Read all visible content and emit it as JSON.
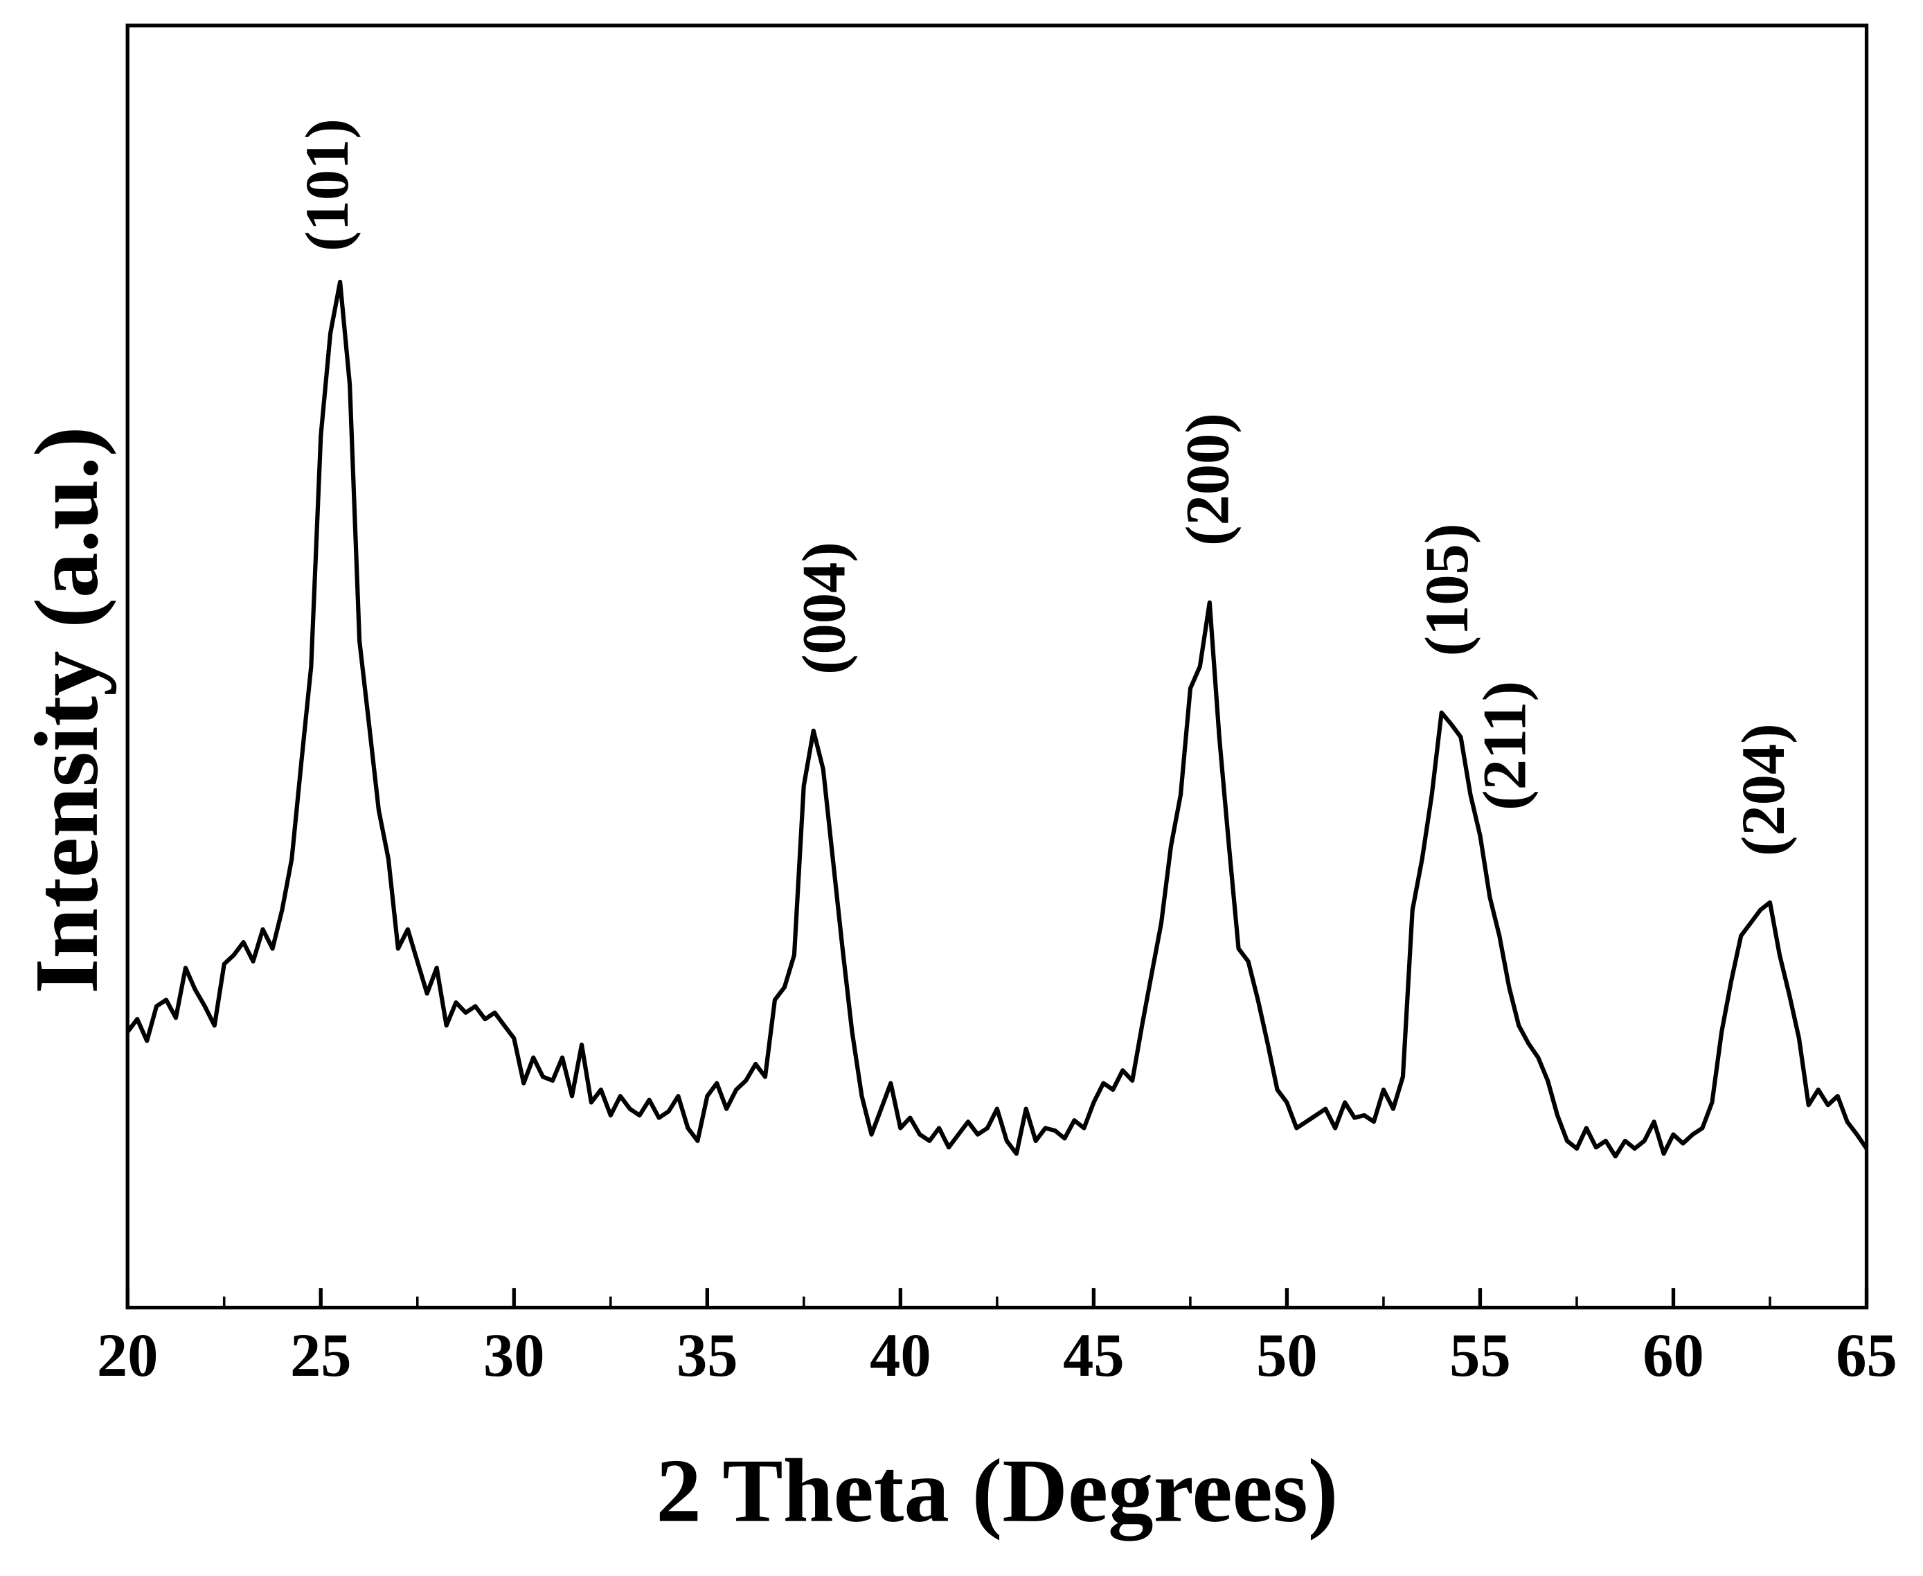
{
  "chart_data": {
    "type": "line",
    "xlabel": "2 Theta (Degrees)",
    "ylabel": "Intensity (a.u.)",
    "color": "#000000",
    "xlim": [
      20,
      65
    ],
    "xticks": [
      20,
      25,
      30,
      35,
      40,
      45,
      50,
      55,
      60,
      65
    ],
    "xminorticks": [
      22.5,
      27.5,
      32.5,
      37.5,
      42.5,
      47.5,
      52.5,
      57.5,
      62.5
    ],
    "ylim": [
      0,
      100
    ],
    "annotations": [
      "(101)",
      "(004)",
      "(200)",
      "(105)",
      "(211)",
      "(204)"
    ],
    "x": [
      20,
      20.25,
      20.5,
      20.75,
      21,
      21.25,
      21.5,
      21.75,
      22,
      22.25,
      22.5,
      22.75,
      23,
      23.25,
      23.5,
      23.75,
      24,
      24.25,
      24.5,
      24.75,
      25,
      25.25,
      25.5,
      25.75,
      26,
      26.25,
      26.5,
      26.75,
      27,
      27.25,
      27.5,
      27.75,
      28,
      28.25,
      28.5,
      28.75,
      29,
      29.25,
      29.5,
      29.75,
      30,
      30.25,
      30.5,
      30.75,
      31,
      31.25,
      31.5,
      31.75,
      32,
      32.25,
      32.5,
      32.75,
      33,
      33.25,
      33.5,
      33.75,
      34,
      34.25,
      34.5,
      34.75,
      35,
      35.25,
      35.5,
      35.75,
      36,
      36.25,
      36.5,
      36.75,
      37,
      37.25,
      37.5,
      37.75,
      38,
      38.25,
      38.5,
      38.75,
      39,
      39.25,
      39.5,
      39.75,
      40,
      40.25,
      40.5,
      40.75,
      41,
      41.25,
      41.5,
      41.75,
      42,
      42.25,
      42.5,
      42.75,
      43,
      43.25,
      43.5,
      43.75,
      44,
      44.25,
      44.5,
      44.75,
      45,
      45.25,
      45.5,
      45.75,
      46,
      46.25,
      46.5,
      46.75,
      47,
      47.25,
      47.5,
      47.75,
      48,
      48.25,
      48.5,
      48.75,
      49,
      49.25,
      49.5,
      49.75,
      50,
      50.25,
      50.5,
      50.75,
      51,
      51.25,
      51.5,
      51.75,
      52,
      52.25,
      52.5,
      52.75,
      53,
      53.25,
      53.5,
      53.75,
      54,
      54.25,
      54.5,
      54.75,
      55,
      55.25,
      55.5,
      55.75,
      56,
      56.25,
      56.5,
      56.75,
      57,
      57.25,
      57.5,
      57.75,
      58,
      58.25,
      58.5,
      58.75,
      59,
      59.25,
      59.5,
      59.75,
      60,
      60.25,
      60.5,
      60.75,
      61,
      61.25,
      61.5,
      61.75,
      62,
      62.25,
      62.5,
      62.75,
      63,
      63.25,
      63.5,
      63.75,
      64,
      64.25,
      64.5,
      64.75,
      65
    ],
    "values": [
      21.5,
      22.5,
      20.8,
      23.5,
      24.0,
      22.6,
      26.5,
      24.8,
      23.5,
      22.0,
      26.8,
      27.5,
      28.5,
      27.0,
      29.5,
      28.0,
      31.0,
      35.0,
      42.6,
      50.0,
      68.0,
      76.0,
      80.0,
      72.0,
      52.0,
      45.5,
      38.8,
      35.0,
      28.0,
      29.5,
      27.0,
      24.5,
      26.5,
      22.0,
      23.8,
      23.0,
      23.5,
      22.5,
      23.0,
      22.0,
      21.0,
      17.5,
      19.5,
      18.0,
      17.7,
      19.5,
      16.5,
      20.5,
      16.0,
      17.0,
      15.0,
      16.5,
      15.5,
      15.0,
      16.2,
      14.8,
      15.3,
      16.5,
      14.0,
      13.0,
      16.5,
      17.5,
      15.5,
      17.0,
      17.7,
      19.0,
      18.0,
      24.0,
      25.0,
      27.5,
      40.7,
      45.0,
      42.0,
      35.0,
      28.0,
      21.5,
      16.5,
      13.5,
      15.5,
      17.5,
      14.0,
      14.8,
      13.5,
      13.0,
      14.0,
      12.5,
      13.5,
      14.5,
      13.5,
      14.0,
      15.5,
      13.0,
      12.0,
      15.5,
      13.0,
      14.0,
      13.8,
      13.2,
      14.6,
      14.0,
      16.0,
      17.5,
      17.0,
      18.5,
      17.7,
      22.0,
      26.0,
      30.0,
      36.0,
      40.0,
      48.3,
      50.0,
      55.0,
      44.5,
      36.0,
      28.0,
      27.0,
      24.0,
      20.6,
      17.0,
      16.0,
      14.0,
      14.5,
      15.0,
      15.5,
      14.0,
      16.0,
      14.8,
      15.0,
      14.5,
      17.0,
      15.5,
      18.0,
      31.0,
      35.0,
      40.0,
      46.4,
      45.5,
      44.5,
      40.0,
      36.8,
      32.0,
      29.0,
      25.0,
      22.0,
      20.6,
      19.5,
      17.7,
      15.0,
      13.0,
      12.4,
      14.0,
      12.5,
      13.0,
      11.8,
      13.0,
      12.4,
      13.0,
      14.5,
      12.0,
      13.5,
      12.8,
      13.5,
      14.0,
      16.0,
      21.5,
      25.5,
      29.0,
      30.0,
      31.0,
      31.6,
      27.5,
      24.4,
      21.0,
      15.8,
      17.0,
      15.8,
      16.5,
      14.5,
      13.5,
      12.4
    ]
  }
}
